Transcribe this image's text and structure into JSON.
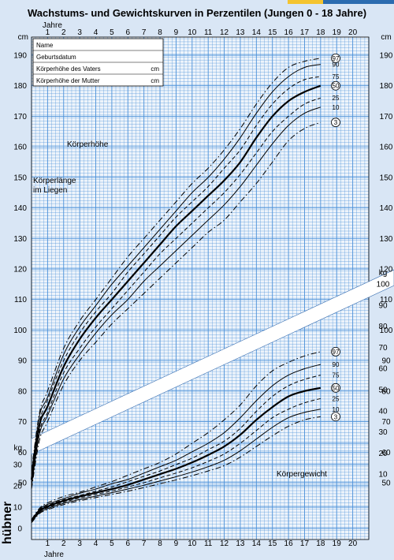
{
  "title": "Wachstums- und Gewichtskurven in Perzentilen (Jungen 0 - 18 Jahre)",
  "top_bar_colors": [
    "#f4c430",
    "#2b6cb0"
  ],
  "grid_color": "#4a90d9",
  "background_color": "#d9e6f5",
  "form": {
    "rows": [
      {
        "label": "Name",
        "unit": ""
      },
      {
        "label": "Geburtsdatum",
        "unit": ""
      },
      {
        "label": "Körperhöhe des Vaters",
        "unit": "cm"
      },
      {
        "label": "Körperhöhe der Mutter",
        "unit": "cm"
      }
    ]
  },
  "publisher_logo": "hübner",
  "chart_data": {
    "type": "line",
    "title": "Wachstums- und Gewichtskurven in Perzentilen (Jungen 0 - 18 Jahre)",
    "xlabel": "Jahre",
    "x_ticks": [
      1,
      2,
      3,
      4,
      5,
      6,
      7,
      8,
      9,
      10,
      11,
      12,
      13,
      14,
      15,
      16,
      17,
      18,
      19,
      20
    ],
    "xlim": [
      0,
      21
    ],
    "grid": true,
    "left_axis": {
      "unit_label": "cm",
      "ylim": [
        45,
        195
      ],
      "ticks": [
        50,
        60,
        70,
        80,
        90,
        100,
        110,
        120,
        130,
        140,
        150,
        160,
        170,
        180,
        190
      ]
    },
    "right_axis": {
      "unit_label": "kg",
      "ticks": [
        100,
        90,
        80,
        70,
        60,
        50,
        40,
        30,
        20,
        10
      ],
      "note": "kg ruler runs along the diagonal band"
    },
    "inner_axis": {
      "unit_label": "kg",
      "ticks": [
        0,
        10,
        20,
        30,
        40,
        50,
        60,
        70,
        80,
        90,
        100
      ]
    },
    "annotations": {
      "height": "Körperhöhe",
      "length": "Körperlänge im Liegen",
      "weight": "Körpergewicht"
    },
    "height_series": [
      {
        "name": "97",
        "circled": true,
        "style": "dashdot",
        "x": [
          0,
          0.5,
          1,
          2,
          3,
          4,
          5,
          6,
          7,
          8,
          9,
          10,
          11,
          12,
          13,
          14,
          15,
          16,
          17,
          18
        ],
        "values": [
          54,
          73,
          80,
          94,
          103,
          110,
          117,
          124,
          130,
          136,
          142,
          148,
          153,
          159,
          166,
          174,
          181,
          186,
          188,
          189
        ]
      },
      {
        "name": "90",
        "circled": false,
        "style": "solid",
        "x": [
          0,
          0.5,
          1,
          2,
          3,
          4,
          5,
          6,
          7,
          8,
          9,
          10,
          11,
          12,
          13,
          14,
          15,
          16,
          17,
          18
        ],
        "values": [
          53,
          72,
          78,
          92,
          101,
          108,
          115,
          121,
          127,
          133,
          139,
          145,
          150,
          156,
          163,
          171,
          178,
          183,
          186,
          187
        ]
      },
      {
        "name": "75",
        "circled": false,
        "style": "dashed",
        "x": [
          0,
          0.5,
          1,
          2,
          3,
          4,
          5,
          6,
          7,
          8,
          9,
          10,
          11,
          12,
          13,
          14,
          15,
          16,
          17,
          18
        ],
        "values": [
          52,
          70,
          77,
          90,
          99,
          106,
          112,
          119,
          125,
          131,
          137,
          142,
          147,
          153,
          159,
          167,
          174,
          179,
          182,
          183
        ]
      },
      {
        "name": "50",
        "circled": true,
        "style": "bold",
        "x": [
          0,
          0.5,
          1,
          2,
          3,
          4,
          5,
          6,
          7,
          8,
          9,
          10,
          11,
          12,
          13,
          14,
          15,
          16,
          17,
          18
        ],
        "values": [
          51,
          69,
          75,
          88,
          97,
          104,
          110,
          116,
          122,
          128,
          134,
          139,
          144,
          149,
          155,
          163,
          170,
          175,
          178,
          180
        ]
      },
      {
        "name": "25",
        "circled": false,
        "style": "dashed",
        "x": [
          0,
          0.5,
          1,
          2,
          3,
          4,
          5,
          6,
          7,
          8,
          9,
          10,
          11,
          12,
          13,
          14,
          15,
          16,
          17,
          18
        ],
        "values": [
          50,
          67,
          73,
          86,
          94,
          101,
          107,
          113,
          119,
          125,
          130,
          135,
          140,
          145,
          151,
          158,
          165,
          170,
          174,
          176
        ]
      },
      {
        "name": "10",
        "circled": false,
        "style": "solid",
        "x": [
          0,
          0.5,
          1,
          2,
          3,
          4,
          5,
          6,
          7,
          8,
          9,
          10,
          11,
          12,
          13,
          14,
          15,
          16,
          17,
          18
        ],
        "values": [
          49,
          66,
          72,
          84,
          92,
          99,
          105,
          110,
          116,
          121,
          126,
          131,
          136,
          141,
          147,
          154,
          161,
          167,
          171,
          173
        ]
      },
      {
        "name": "3",
        "circled": true,
        "style": "dashdot",
        "x": [
          0,
          0.5,
          1,
          2,
          3,
          4,
          5,
          6,
          7,
          8,
          9,
          10,
          11,
          12,
          13,
          14,
          15,
          16,
          17,
          18
        ],
        "values": [
          48,
          64,
          70,
          82,
          90,
          96,
          102,
          107,
          112,
          117,
          122,
          127,
          132,
          136,
          142,
          148,
          155,
          162,
          166,
          168
        ]
      }
    ],
    "weight_series": [
      {
        "name": "97",
        "circled": true,
        "style": "dashdot",
        "x": [
          0,
          0.5,
          1,
          2,
          3,
          4,
          5,
          6,
          7,
          8,
          9,
          10,
          11,
          12,
          13,
          14,
          15,
          16,
          17,
          18
        ],
        "values": [
          4.2,
          9.5,
          12,
          15,
          17,
          19.5,
          22,
          25,
          28,
          31,
          35,
          40,
          45,
          51,
          58,
          67,
          74,
          78,
          81,
          83
        ]
      },
      {
        "name": "90",
        "circled": false,
        "style": "solid",
        "x": [
          0,
          0.5,
          1,
          2,
          3,
          4,
          5,
          6,
          7,
          8,
          9,
          10,
          11,
          12,
          13,
          14,
          15,
          16,
          17,
          18
        ],
        "values": [
          4.0,
          9,
          11.3,
          14,
          16.5,
          18.5,
          21,
          23,
          26,
          29,
          32,
          36,
          40,
          45,
          52,
          60,
          67,
          72,
          75,
          77
        ]
      },
      {
        "name": "75",
        "circled": false,
        "style": "dashed",
        "x": [
          0,
          0.5,
          1,
          2,
          3,
          4,
          5,
          6,
          7,
          8,
          9,
          10,
          11,
          12,
          13,
          14,
          15,
          16,
          17,
          18
        ],
        "values": [
          3.7,
          8.6,
          10.8,
          13.5,
          15.5,
          17.5,
          19.5,
          22,
          24.5,
          27,
          30,
          33,
          37,
          41,
          47,
          55,
          62,
          67,
          70,
          72
        ]
      },
      {
        "name": "50",
        "circled": true,
        "style": "bold",
        "x": [
          0,
          0.5,
          1,
          2,
          3,
          4,
          5,
          6,
          7,
          8,
          9,
          10,
          11,
          12,
          13,
          14,
          15,
          16,
          17,
          18
        ],
        "values": [
          3.5,
          8.2,
          10.3,
          13,
          15,
          16.8,
          18.5,
          20.5,
          23,
          25.5,
          28,
          31,
          34.5,
          38.5,
          44,
          51,
          57,
          62,
          64.5,
          66
        ]
      },
      {
        "name": "25",
        "circled": false,
        "style": "dashed",
        "x": [
          0,
          0.5,
          1,
          2,
          3,
          4,
          5,
          6,
          7,
          8,
          9,
          10,
          11,
          12,
          13,
          14,
          15,
          16,
          17,
          18
        ],
        "values": [
          3.3,
          7.8,
          9.8,
          12.3,
          14.3,
          16,
          17.6,
          19.5,
          21.5,
          23.8,
          26,
          28.5,
          31.5,
          35,
          40,
          46,
          52,
          56,
          59,
          61
        ]
      },
      {
        "name": "10",
        "circled": false,
        "style": "solid",
        "x": [
          0,
          0.5,
          1,
          2,
          3,
          4,
          5,
          6,
          7,
          8,
          9,
          10,
          11,
          12,
          13,
          14,
          15,
          16,
          17,
          18
        ],
        "values": [
          3.0,
          7.4,
          9.3,
          11.8,
          13.6,
          15.2,
          16.8,
          18.5,
          20.3,
          22.3,
          24.3,
          26.5,
          29,
          32,
          36.5,
          42,
          47.5,
          52,
          54.5,
          56
        ]
      },
      {
        "name": "3",
        "circled": true,
        "style": "dashdot",
        "x": [
          0,
          0.5,
          1,
          2,
          3,
          4,
          5,
          6,
          7,
          8,
          9,
          10,
          11,
          12,
          13,
          14,
          15,
          16,
          17,
          18
        ],
        "values": [
          2.7,
          7,
          8.8,
          11.2,
          13,
          14.5,
          16,
          17.5,
          19.2,
          21,
          22.8,
          24.8,
          27,
          29.5,
          33.5,
          38.5,
          43.5,
          48,
          51,
          52.5
        ]
      }
    ]
  }
}
